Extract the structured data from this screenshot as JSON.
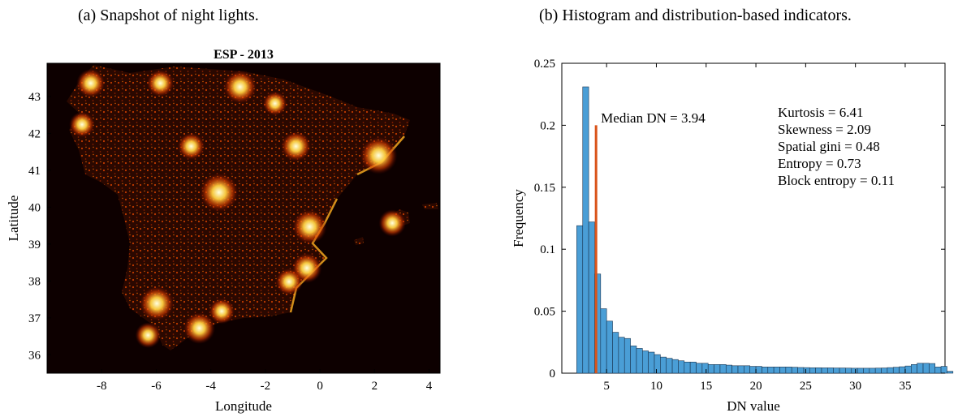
{
  "captions": {
    "a": "(a) Snapshot of night lights.",
    "b": "(b) Histogram and distribution-based indicators."
  },
  "colors": {
    "map_background": "#0d0000",
    "light_glow": "#ffd040",
    "land_base": "#2a0800",
    "histogram_bar": "#4a9ed6",
    "median_line": "#d95319"
  },
  "chart_data": [
    {
      "type": "heatmap",
      "title": "ESP - 2013",
      "xlabel": "Longitude",
      "ylabel": "Latitude",
      "xlim": [
        -10,
        4.4
      ],
      "ylim": [
        35.5,
        43.9
      ],
      "x_ticks": [
        -8,
        -6,
        -4,
        -2,
        0,
        2,
        4
      ],
      "y_ticks": [
        36,
        37,
        38,
        39,
        40,
        41,
        42,
        43
      ],
      "colormap": "hot",
      "bright_spots": [
        {
          "lon": -3.7,
          "lat": 40.4,
          "intensity": 1.0
        },
        {
          "lon": 2.15,
          "lat": 41.4,
          "intensity": 0.95
        },
        {
          "lon": -0.38,
          "lat": 39.47,
          "intensity": 0.85
        },
        {
          "lon": -5.98,
          "lat": 37.39,
          "intensity": 0.85
        },
        {
          "lon": -2.93,
          "lat": 43.26,
          "intensity": 0.8
        },
        {
          "lon": -0.88,
          "lat": 41.65,
          "intensity": 0.7
        },
        {
          "lon": -4.42,
          "lat": 36.72,
          "intensity": 0.75
        },
        {
          "lon": -8.4,
          "lat": 43.36,
          "intensity": 0.65
        },
        {
          "lon": -4.72,
          "lat": 41.65,
          "intensity": 0.6
        },
        {
          "lon": -0.48,
          "lat": 38.35,
          "intensity": 0.7
        },
        {
          "lon": -1.13,
          "lat": 37.98,
          "intensity": 0.6
        },
        {
          "lon": 2.65,
          "lat": 39.57,
          "intensity": 0.6
        },
        {
          "lon": -3.6,
          "lat": 37.18,
          "intensity": 0.55
        },
        {
          "lon": -5.85,
          "lat": 43.36,
          "intensity": 0.6
        },
        {
          "lon": -1.65,
          "lat": 42.81,
          "intensity": 0.5
        },
        {
          "lon": -6.3,
          "lat": 36.53,
          "intensity": 0.55
        },
        {
          "lon": -8.72,
          "lat": 42.24,
          "intensity": 0.55
        }
      ]
    },
    {
      "type": "bar",
      "xlabel": "DN value",
      "ylabel": "Frequency",
      "xlim": [
        0.5,
        39
      ],
      "ylim": [
        0,
        0.25
      ],
      "x_ticks": [
        5,
        10,
        15,
        20,
        25,
        30,
        35
      ],
      "y_ticks": [
        0,
        0.05,
        0.1,
        0.15,
        0.2,
        0.25
      ],
      "y_tick_labels": [
        "0",
        "0.05",
        "0.1",
        "0.15",
        "0.2",
        "0.25"
      ],
      "bin_start": 2,
      "bin_width": 0.6,
      "values": [
        0.119,
        0.231,
        0.122,
        0.08,
        0.052,
        0.042,
        0.033,
        0.029,
        0.028,
        0.022,
        0.02,
        0.018,
        0.017,
        0.015,
        0.013,
        0.012,
        0.011,
        0.01,
        0.009,
        0.009,
        0.008,
        0.008,
        0.007,
        0.007,
        0.007,
        0.0065,
        0.006,
        0.006,
        0.006,
        0.0055,
        0.0055,
        0.005,
        0.005,
        0.005,
        0.005,
        0.005,
        0.0048,
        0.0046,
        0.0045,
        0.0044,
        0.0044,
        0.0043,
        0.0043,
        0.0042,
        0.0042,
        0.0041,
        0.004,
        0.004,
        0.004,
        0.004,
        0.0041,
        0.0042,
        0.0045,
        0.0048,
        0.0052,
        0.0058,
        0.007,
        0.008,
        0.008,
        0.0078,
        0.005,
        0.0055,
        0.0015
      ],
      "median": {
        "value": 3.94,
        "height": 0.2,
        "label": "Median DN = 3.94"
      },
      "annotations": [
        "Kurtosis = 6.41",
        "Skewness = 2.09",
        "Spatial gini = 0.48",
        "Entropy = 0.73",
        "Block entropy = 0.11"
      ]
    }
  ]
}
